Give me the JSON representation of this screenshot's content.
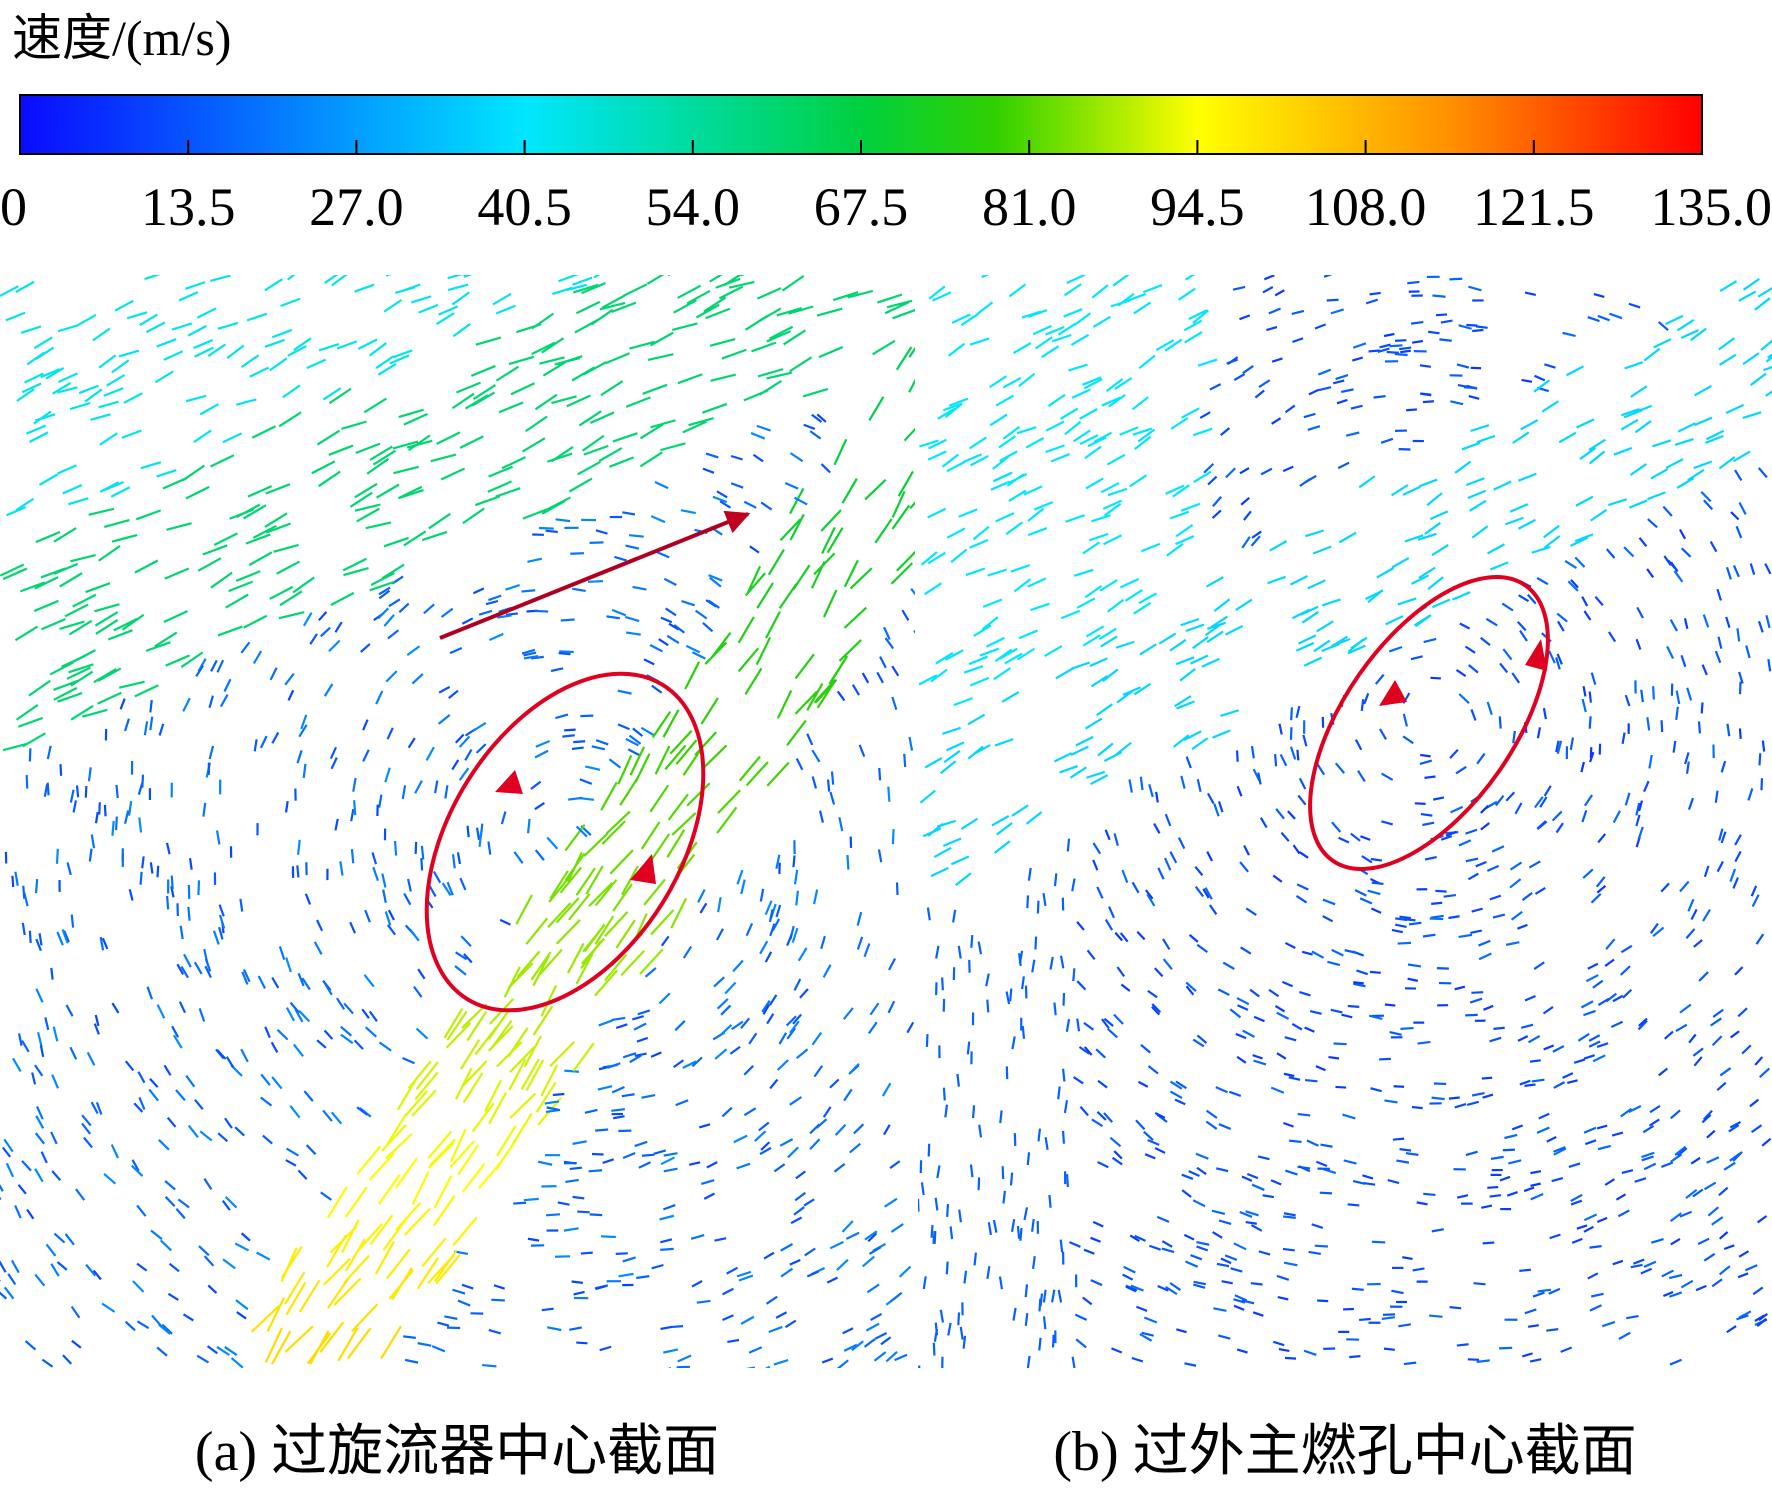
{
  "colorbar": {
    "title": "速度/(m/s)",
    "range": [
      0,
      135
    ],
    "ticks": [
      0,
      13.5,
      {
        "value": 27,
        "label": "27.0"
      },
      40.5,
      {
        "value": 54,
        "label": "54.0"
      },
      67.5,
      {
        "value": 81,
        "label": "81.0"
      },
      94.5,
      {
        "value": 108,
        "label": "108.0"
      },
      121.5,
      {
        "value": 135,
        "label": "135.0"
      }
    ]
  },
  "panels": [
    {
      "caption": "(a) 过旋流器中心截面"
    },
    {
      "caption": "(b) 过外主燃孔中心截面"
    }
  ]
}
